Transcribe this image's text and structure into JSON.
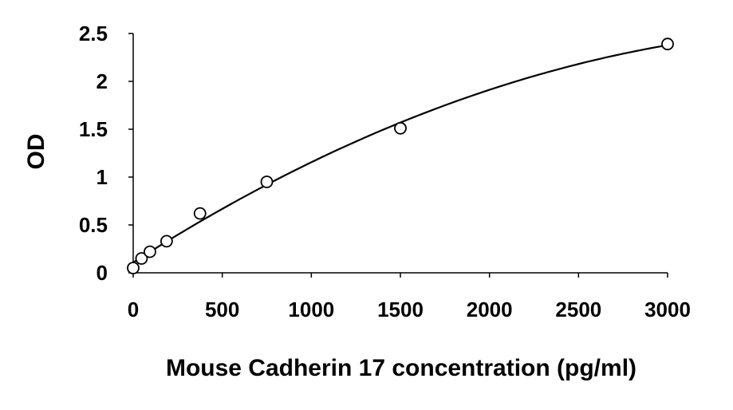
{
  "chart_data": {
    "type": "scatter",
    "xlabel": "Mouse Cadherin 17 concentration (pg/ml)",
    "ylabel": "OD",
    "xlim": [
      0,
      3000
    ],
    "ylim": [
      0,
      2.5
    ],
    "xticks": [
      0,
      500,
      1000,
      1500,
      2000,
      2500,
      3000
    ],
    "yticks": [
      0,
      0.5,
      1,
      1.5,
      2,
      2.5
    ],
    "xtick_labels": [
      "0",
      "500",
      "1000",
      "1500",
      "2000",
      "2500",
      "3000"
    ],
    "ytick_labels": [
      "0",
      "0.5",
      "1",
      "1.5",
      "2",
      "2.5"
    ],
    "series": [
      {
        "points": [
          {
            "x": 0,
            "y": 0.05
          },
          {
            "x": 46.875,
            "y": 0.15
          },
          {
            "x": 93.75,
            "y": 0.22
          },
          {
            "x": 187.5,
            "y": 0.33
          },
          {
            "x": 375,
            "y": 0.62
          },
          {
            "x": 750,
            "y": 0.95
          },
          {
            "x": 1500,
            "y": 1.51
          },
          {
            "x": 3000,
            "y": 2.39
          }
        ],
        "marker": "open-circle",
        "trendline": "polynomial",
        "color": "#000000"
      }
    ],
    "grid": false,
    "legend": "none"
  }
}
